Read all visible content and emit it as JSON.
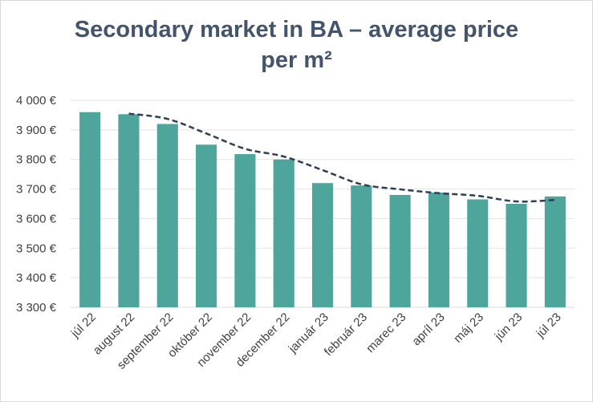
{
  "chart_data": {
    "type": "bar",
    "title": "Secondary market in BA – average price",
    "title_line2": "per m²",
    "xlabel": "",
    "ylabel": "",
    "categories": [
      "júl 22",
      "august 22",
      "september 22",
      "október 22",
      "november 22",
      "december 22",
      "január 23",
      "február 23",
      "marec 23",
      "apríl 23",
      "máj 23",
      "jún 23",
      "júl 23"
    ],
    "values": [
      3960,
      3953,
      3920,
      3850,
      3818,
      3800,
      3720,
      3712,
      3680,
      3688,
      3665,
      3650,
      3675
    ],
    "trend": [
      null,
      3955,
      3937,
      3888,
      3836,
      3810,
      3764,
      3716,
      3699,
      3686,
      3677,
      3658,
      3663
    ],
    "ylim": [
      3300,
      4000
    ],
    "yticks": [
      3300,
      3400,
      3500,
      3600,
      3700,
      3800,
      3900,
      4000
    ],
    "ytick_labels": [
      "3 300 €",
      "3 400 €",
      "3 500 €",
      "3 600 €",
      "3 700 €",
      "3 800 €",
      "3 900 €",
      "4 000 €"
    ],
    "grid": true,
    "legend": "none",
    "colors": {
      "bar": "#4da59b",
      "trend": "#2f3f55",
      "grid": "#e3e3e3",
      "title": "#44546a"
    }
  }
}
